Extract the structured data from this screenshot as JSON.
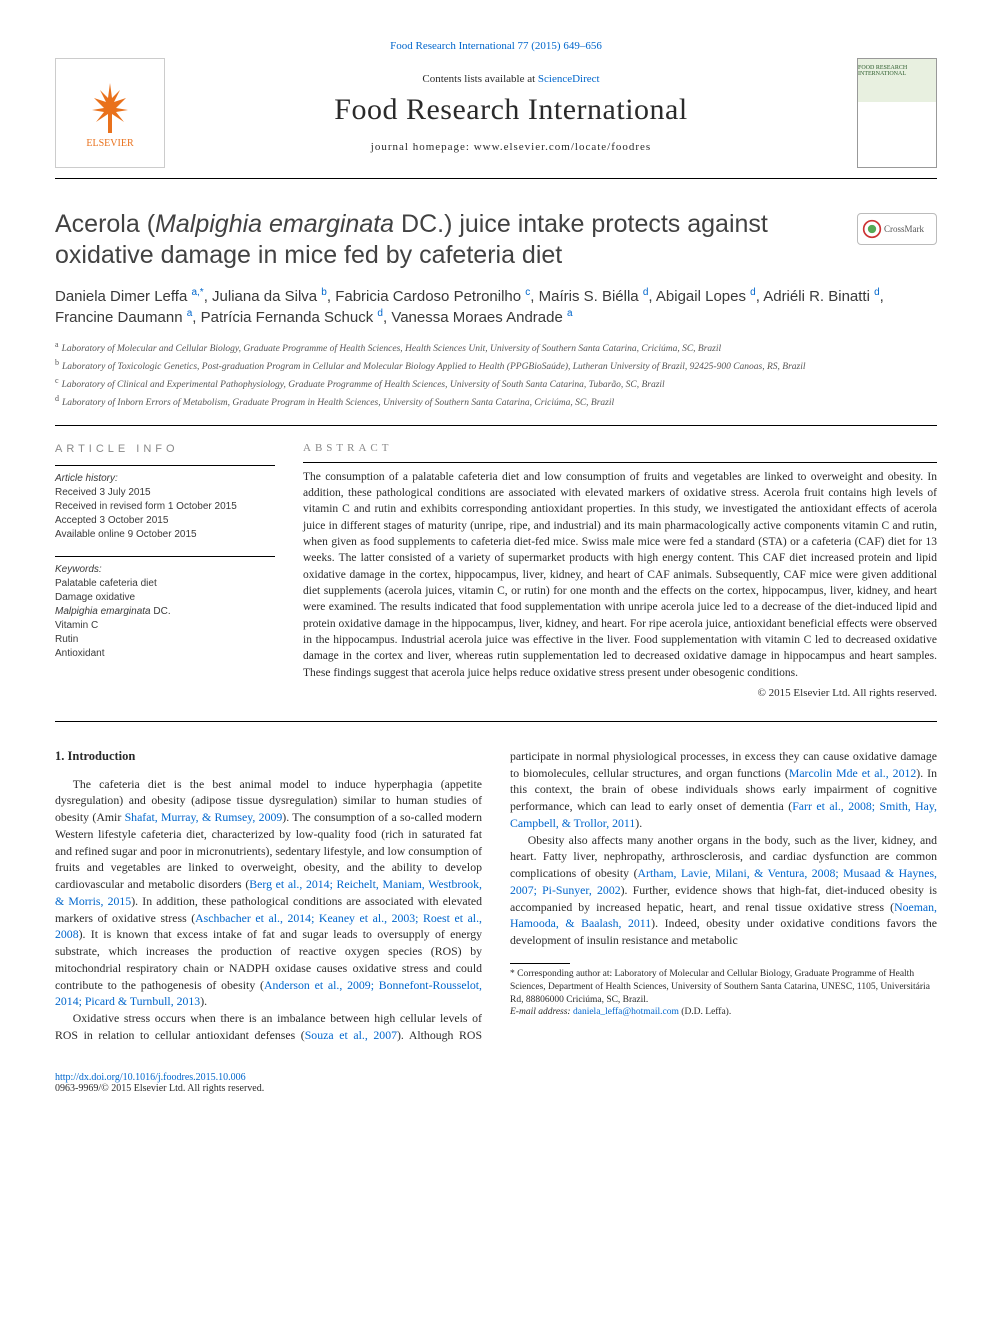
{
  "topLink": {
    "prefix": "",
    "linkText": "Food Research International 77 (2015) 649–656"
  },
  "masthead": {
    "contentsPrefix": "Contents lists available at ",
    "contentsLink": "ScienceDirect",
    "journalTitle": "Food Research International",
    "homepagePrefix": "journal homepage: ",
    "homepageUrl": "www.elsevier.com/locate/foodres",
    "elsevierName": "ELSEVIER",
    "coverTitle": "FOOD RESEARCH INTERNATIONAL"
  },
  "article": {
    "titleLine1": "Acerola (",
    "titleItalic": "Malpighia emarginata",
    "titleLine2": " DC.) juice intake protects against oxidative damage in mice fed by cafeteria diet",
    "crossmark": "CrossMark"
  },
  "authors": [
    {
      "name": "Daniela Dimer Leffa",
      "sup": "a,*"
    },
    {
      "name": "Juliana da Silva",
      "sup": "b"
    },
    {
      "name": "Fabricia Cardoso Petronilho",
      "sup": "c"
    },
    {
      "name": "Maíris S. Biélla",
      "sup": "d"
    },
    {
      "name": "Abigail Lopes",
      "sup": "d"
    },
    {
      "name": "Adriéli R. Binatti",
      "sup": "d"
    },
    {
      "name": "Francine Daumann",
      "sup": "a"
    },
    {
      "name": "Patrícia Fernanda Schuck",
      "sup": "d"
    },
    {
      "name": "Vanessa Moraes Andrade",
      "sup": "a"
    }
  ],
  "affiliations": [
    {
      "key": "a",
      "text": "Laboratory of Molecular and Cellular Biology, Graduate Programme of Health Sciences, Health Sciences Unit, University of Southern Santa Catarina, Criciúma, SC, Brazil"
    },
    {
      "key": "b",
      "text": "Laboratory of Toxicologic Genetics, Post-graduation Program in Cellular and Molecular Biology Applied to Health (PPGBioSaúde), Lutheran University of Brazil, 92425-900 Canoas, RS, Brazil"
    },
    {
      "key": "c",
      "text": "Laboratory of Clinical and Experimental Pathophysiology, Graduate Programme of Health Sciences, University of South Santa Catarina, Tubarão, SC, Brazil"
    },
    {
      "key": "d",
      "text": "Laboratory of Inborn Errors of Metabolism, Graduate Program in Health Sciences, University of Southern Santa Catarina, Criciúma, SC, Brazil"
    }
  ],
  "infoLabel": "ARTICLE INFO",
  "abstractLabel": "ABSTRACT",
  "history": {
    "label": "Article history:",
    "items": [
      "Received 3 July 2015",
      "Received in revised form 1 October 2015",
      "Accepted 3 October 2015",
      "Available online 9 October 2015"
    ]
  },
  "keywords": {
    "label": "Keywords:",
    "items": [
      "Palatable cafeteria diet",
      "Damage oxidative",
      "Malpighia emarginata DC.",
      "Vitamin C",
      "Rutin",
      "Antioxidant"
    ]
  },
  "abstract": "The consumption of a palatable cafeteria diet and low consumption of fruits and vegetables are linked to overweight and obesity. In addition, these pathological conditions are associated with elevated markers of oxidative stress. Acerola fruit contains high levels of vitamin C and rutin and exhibits corresponding antioxidant properties. In this study, we investigated the antioxidant effects of acerola juice in different stages of maturity (unripe, ripe, and industrial) and its main pharmacologically active components vitamin C and rutin, when given as food supplements to cafeteria diet-fed mice. Swiss male mice were fed a standard (STA) or a cafeteria (CAF) diet for 13 weeks. The latter consisted of a variety of supermarket products with high energy content. This CAF diet increased protein and lipid oxidative damage in the cortex, hippocampus, liver, kidney, and heart of CAF animals. Subsequently, CAF mice were given additional diet supplements (acerola juices, vitamin C, or rutin) for one month and the effects on the cortex, hippocampus, liver, kidney, and heart were examined. The results indicated that food supplementation with unripe acerola juice led to a decrease of the diet-induced lipid and protein oxidative damage in the hippocampus, liver, kidney, and heart. For ripe acerola juice, antioxidant beneficial effects were observed in the hippocampus. Industrial acerola juice was effective in the liver. Food supplementation with vitamin C led to decreased oxidative damage in the cortex and liver, whereas rutin supplementation led to decreased oxidative damage in hippocampus and heart samples. These findings suggest that acerola juice helps reduce oxidative stress present under obesogenic conditions.",
  "copyright": "© 2015 Elsevier Ltd. All rights reserved.",
  "intro": {
    "heading": "1. Introduction",
    "p1a": "The cafeteria diet is the best animal model to induce hyperphagia (appetite dysregulation) and obesity (adipose tissue dysregulation) similar to human studies of obesity (Amir ",
    "p1link1": "Shafat, Murray, & Rumsey, 2009",
    "p1b": "). The consumption of a so-called modern Western lifestyle cafeteria diet, characterized by low-quality food (rich in saturated fat and refined sugar and poor in micronutrients), sedentary lifestyle, and low consumption of fruits and vegetables are linked to overweight, obesity, and the ability to develop cardiovascular and metabolic disorders (",
    "p1link2": "Berg et al., 2014; Reichelt, Maniam, Westbrook, & Morris, 2015",
    "p1c": "). In addition, these pathological conditions are associated with elevated markers of oxidative stress (",
    "p1link3": "Aschbacher et al., 2014; Keaney et al., 2003; Roest et al., 2008",
    "p1d": "). It is known that excess intake of fat and sugar leads to oversupply of energy substrate, which increases the production of reactive ",
    "p1e": "oxygen species (ROS) by mitochondrial respiratory chain or NADPH oxidase causes oxidative stress and could contribute to the pathogenesis of obesity (",
    "p1link4": "Anderson et al., 2009; Bonnefont-Rousselot, 2014; Picard & Turnbull, 2013",
    "p1f": ").",
    "p2a": "Oxidative stress occurs when there is an imbalance between high cellular levels of ROS in relation to cellular antioxidant defenses (",
    "p2link1": "Souza et al., 2007",
    "p2b": "). Although ROS participate in normal physiological processes, in excess they can cause oxidative damage to biomolecules, cellular structures, and organ functions (",
    "p2link2": "Marcolin Mde et al., 2012",
    "p2c": "). In this context, the brain of obese individuals shows early impairment of cognitive performance, which can lead to early onset of dementia (",
    "p2link3": "Farr et al., 2008; Smith, Hay, Campbell, & Trollor, 2011",
    "p2d": ").",
    "p3a": "Obesity also affects many another organs in the body, such as the liver, kidney, and heart. Fatty liver, nephropathy, arthrosclerosis, and cardiac dysfunction are common complications of obesity (",
    "p3link1": "Artham, Lavie, Milani, & Ventura, 2008; Musaad & Haynes, 2007; Pi-Sunyer, 2002",
    "p3b": "). Further, evidence shows that high-fat, diet-induced obesity is accompanied by increased hepatic, heart, and renal tissue oxidative stress (",
    "p3link2": "Noeman, Hamooda, & Baalash, 2011",
    "p3c": "). Indeed, obesity under oxidative conditions favors the development of insulin resistance and metabolic"
  },
  "corr": {
    "star": "*",
    "text": "Corresponding author at: Laboratory of Molecular and Cellular Biology, Graduate Programme of Health Sciences, Department of Health Sciences, University of Southern Santa Catarina, UNESC, 1105, Universitária Rd, 88806000 Criciúma, SC, Brazil.",
    "emailLabel": "E-mail address: ",
    "email": "daniela_leffa@hotmail.com",
    "emailSuffix": " (D.D. Leffa)."
  },
  "footer": {
    "doi": "http://dx.doi.org/10.1016/j.foodres.2015.10.006",
    "issn": "0963-9969/© 2015 Elsevier Ltd. All rights reserved."
  },
  "style": {
    "linkColor": "#0066cc",
    "textColor": "#2a2a2a",
    "mutedColor": "#888888",
    "elsevierOrange": "#e9711c",
    "pageWidth": 992,
    "pageHeight": 1323,
    "bodyFontSize": 11.8,
    "titleFontSize": 25,
    "journalTitleFontSize": 30
  }
}
